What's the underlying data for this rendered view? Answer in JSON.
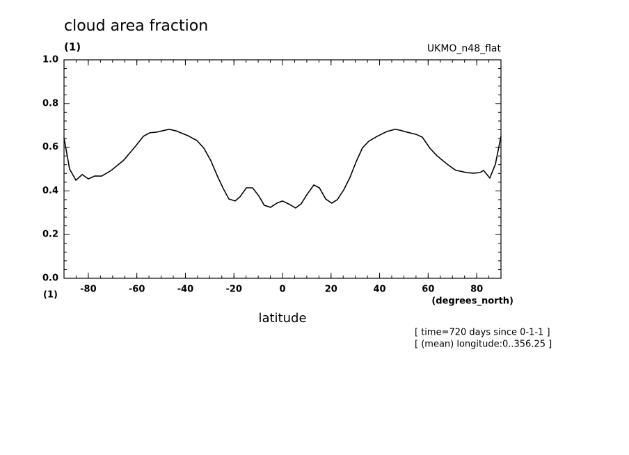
{
  "chart_data": {
    "type": "line",
    "title": "cloud area fraction",
    "y_units": "(1)",
    "dataset": "UKMO_n48_flat",
    "x_units_left": "(1)",
    "x_units": "(degrees_north)",
    "xlabel": "latitude",
    "notes": [
      "[ time=720 days since 0-1-1 ]",
      "[ (mean) longitude:0..356.25 ]"
    ],
    "xlim": [
      -90,
      90
    ],
    "xticks": [
      -80,
      -60,
      -40,
      -20,
      0,
      20,
      40,
      60,
      80
    ],
    "ylim": [
      0,
      1
    ],
    "yticks": [
      {
        "value": 0,
        "label": "0.0"
      },
      0.2,
      0.4,
      0.6,
      0.8,
      {
        "value": 1,
        "label": "1.0"
      }
    ],
    "series": [
      {
        "color": "#000000",
        "x": [
          -90,
          -87.7,
          -85.1,
          -82.5,
          -80,
          -77.4,
          -74.5,
          -70.5,
          -65.4,
          -60.5,
          -57.3,
          -54.7,
          -51.9,
          -46.7,
          -43.9,
          -39,
          -35.3,
          -32.4,
          -29.5,
          -26.7,
          -24.4,
          -22.1,
          -19.5,
          -17.5,
          -14.9,
          -12.3,
          -9.7,
          -7.5,
          -4.9,
          -2.3,
          0,
          2.9,
          5.4,
          7.7,
          10,
          12.9,
          15.2,
          17.8,
          20.3,
          22.6,
          25.2,
          27.8,
          30.4,
          32.9,
          35.5,
          39,
          43,
          46.4,
          48.4,
          51.3,
          55,
          57.6,
          60.7,
          63.6,
          67.9,
          71.4,
          73.4,
          75.7,
          78.8,
          81.4,
          82.8,
          85.4,
          87.7,
          90
        ],
        "values": [
          0.643,
          0.5,
          0.449,
          0.475,
          0.455,
          0.468,
          0.468,
          0.494,
          0.541,
          0.605,
          0.65,
          0.666,
          0.669,
          0.682,
          0.675,
          0.653,
          0.631,
          0.596,
          0.538,
          0.465,
          0.411,
          0.363,
          0.354,
          0.373,
          0.414,
          0.414,
          0.376,
          0.334,
          0.325,
          0.344,
          0.354,
          0.338,
          0.322,
          0.341,
          0.382,
          0.427,
          0.414,
          0.363,
          0.344,
          0.36,
          0.404,
          0.462,
          0.535,
          0.596,
          0.627,
          0.65,
          0.672,
          0.682,
          0.678,
          0.669,
          0.659,
          0.646,
          0.596,
          0.561,
          0.522,
          0.494,
          0.49,
          0.484,
          0.481,
          0.484,
          0.494,
          0.459,
          0.522,
          0.65
        ]
      }
    ]
  }
}
